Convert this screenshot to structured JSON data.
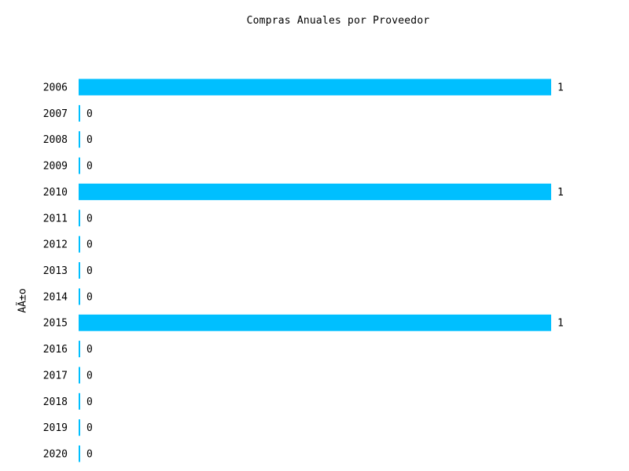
{
  "chart_data": {
    "type": "bar",
    "orientation": "horizontal",
    "title": "Compras Anuales por Proveedor",
    "xlabel": "",
    "ylabel": "AÃ±o",
    "categories": [
      "2006",
      "2007",
      "2008",
      "2009",
      "2010",
      "2011",
      "2012",
      "2013",
      "2014",
      "2015",
      "2016",
      "2017",
      "2018",
      "2019",
      "2020"
    ],
    "values": [
      1,
      0,
      0,
      0,
      1,
      0,
      0,
      0,
      0,
      1,
      0,
      0,
      0,
      0,
      0
    ],
    "xlim": [
      0,
      1
    ],
    "bar_color": "#00bfff",
    "grid": false,
    "legend": "none"
  }
}
